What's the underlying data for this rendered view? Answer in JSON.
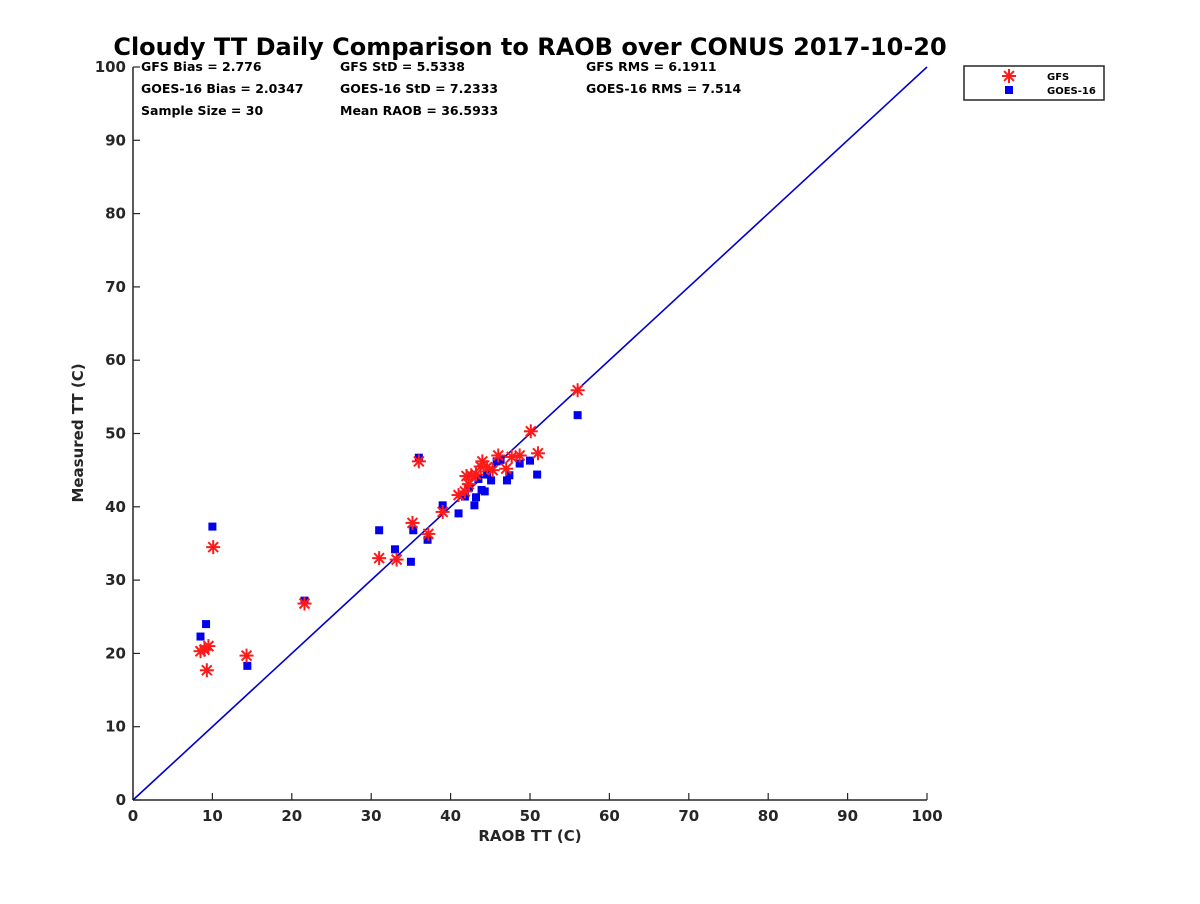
{
  "chart_data": {
    "type": "scatter",
    "title": "Cloudy TT Daily Comparison to RAOB over CONUS 2017-10-20",
    "xlabel": "RAOB TT (C)",
    "ylabel": "Measured TT (C)",
    "xlim": [
      0,
      100
    ],
    "ylim": [
      0,
      100
    ],
    "xticks": [
      "0",
      "10",
      "20",
      "30",
      "40",
      "50",
      "60",
      "70",
      "80",
      "90",
      "100"
    ],
    "yticks": [
      "0",
      "10",
      "20",
      "30",
      "40",
      "50",
      "60",
      "70",
      "80",
      "90",
      "100"
    ],
    "grid": false,
    "legend_position": "top-right outside",
    "reference_line": {
      "x": [
        0,
        100
      ],
      "y": [
        0,
        100
      ],
      "color": "#0000cc"
    },
    "stats": [
      [
        "GFS Bias = 2.776",
        "GFS StD = 5.5338",
        "GFS RMS = 6.1911"
      ],
      [
        "GOES-16 Bias = 2.0347",
        "GOES-16 StD = 7.2333",
        "GOES-16 RMS = 7.514"
      ],
      [
        "Sample Size = 30",
        "Mean RAOB = 36.5933",
        ""
      ]
    ],
    "series": [
      {
        "name": "GFS",
        "marker": "asterisk",
        "color": "#ff1a1a",
        "points": [
          [
            8.5,
            20.3
          ],
          [
            9.0,
            20.5
          ],
          [
            9.3,
            17.7
          ],
          [
            9.5,
            21.0
          ],
          [
            10.1,
            34.5
          ],
          [
            14.3,
            19.7
          ],
          [
            21.6,
            26.8
          ],
          [
            31.0,
            33.0
          ],
          [
            33.2,
            32.8
          ],
          [
            35.2,
            37.8
          ],
          [
            36.0,
            46.2
          ],
          [
            37.2,
            36.3
          ],
          [
            39.0,
            39.3
          ],
          [
            41.0,
            41.6
          ],
          [
            41.8,
            42.1
          ],
          [
            42.0,
            44.2
          ],
          [
            42.3,
            43.1
          ],
          [
            42.6,
            44.3
          ],
          [
            43.2,
            44.4
          ],
          [
            43.8,
            45.5
          ],
          [
            44.0,
            46.2
          ],
          [
            44.6,
            45.4
          ],
          [
            45.3,
            45.0
          ],
          [
            46.0,
            47.0
          ],
          [
            47.0,
            45.2
          ],
          [
            47.7,
            46.8
          ],
          [
            48.7,
            47.0
          ],
          [
            50.1,
            50.3
          ],
          [
            51.0,
            47.3
          ],
          [
            56.0,
            55.9
          ]
        ]
      },
      {
        "name": "GOES-16",
        "marker": "square",
        "color": "#0000ee",
        "points": [
          [
            8.5,
            22.3
          ],
          [
            9.2,
            24.0
          ],
          [
            10.0,
            37.3
          ],
          [
            14.4,
            18.3
          ],
          [
            21.6,
            27.2
          ],
          [
            31.0,
            36.8
          ],
          [
            33.0,
            34.2
          ],
          [
            35.0,
            32.5
          ],
          [
            35.3,
            36.8
          ],
          [
            36.0,
            46.7
          ],
          [
            37.1,
            35.5
          ],
          [
            39.0,
            40.2
          ],
          [
            41.0,
            39.1
          ],
          [
            41.8,
            41.4
          ],
          [
            42.3,
            42.6
          ],
          [
            43.0,
            40.2
          ],
          [
            43.2,
            41.3
          ],
          [
            43.5,
            43.8
          ],
          [
            43.9,
            42.3
          ],
          [
            44.3,
            42.1
          ],
          [
            44.6,
            44.4
          ],
          [
            45.1,
            43.6
          ],
          [
            45.8,
            46.2
          ],
          [
            46.3,
            46.4
          ],
          [
            47.1,
            43.6
          ],
          [
            47.4,
            44.3
          ],
          [
            48.7,
            45.9
          ],
          [
            50.0,
            46.3
          ],
          [
            50.9,
            44.4
          ],
          [
            56.0,
            52.5
          ]
        ]
      }
    ]
  }
}
